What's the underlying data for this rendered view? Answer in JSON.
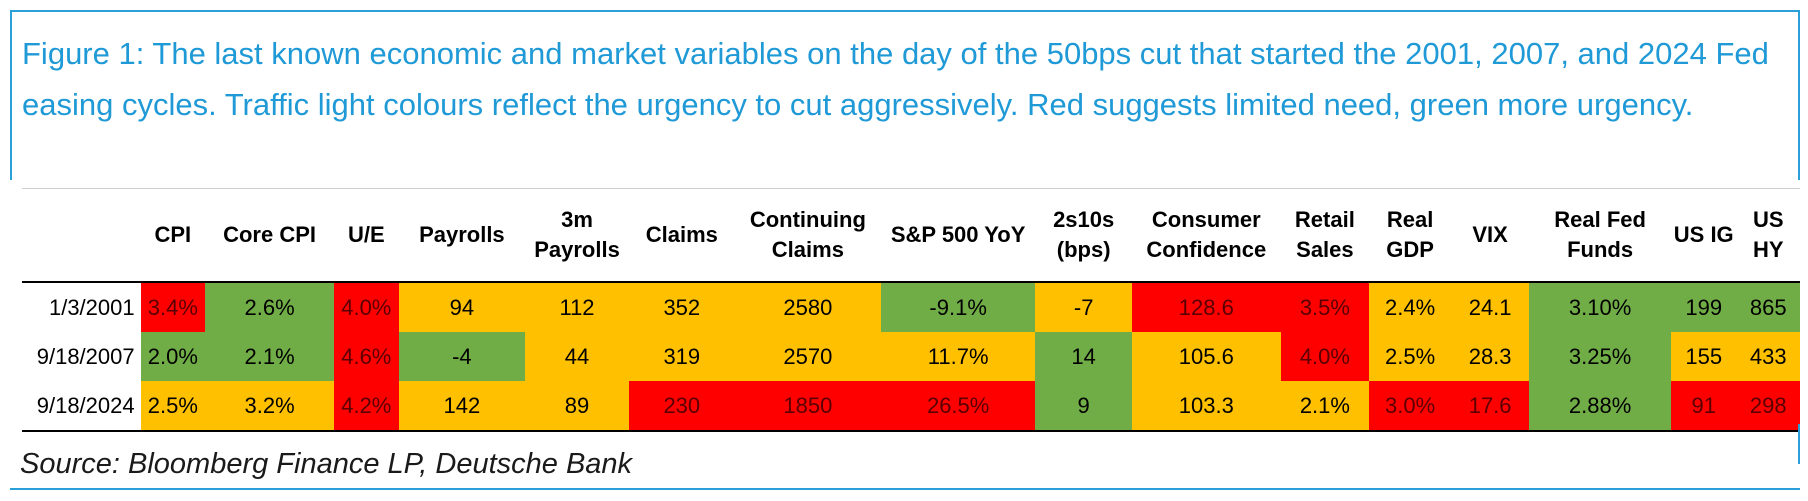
{
  "caption": "Figure 1: The last known economic and market variables on the day of the 50bps cut that started the 2001, 2007, and 2024 Fed easing cycles. Traffic light colours reflect the urgency to cut aggressively. Red suggests limited need, green more urgency.",
  "columns": [
    "",
    "CPI",
    "Core CPI",
    "U/E",
    "Payrolls",
    "3m Payrolls",
    "Claims",
    "Continuing Claims",
    "S&P 500 YoY",
    "2s10s (bps)",
    "Consumer Confidence",
    "Retail Sales",
    "Real GDP",
    "VIX",
    "Real Fed Funds",
    "US IG",
    "US HY"
  ],
  "rows": [
    {
      "date": "1/3/2001",
      "cells": [
        {
          "v": "3.4%",
          "c": "red"
        },
        {
          "v": "2.6%",
          "c": "green"
        },
        {
          "v": "4.0%",
          "c": "red"
        },
        {
          "v": "94",
          "c": "amber"
        },
        {
          "v": "112",
          "c": "amber"
        },
        {
          "v": "352",
          "c": "amber"
        },
        {
          "v": "2580",
          "c": "amber"
        },
        {
          "v": "-9.1%",
          "c": "green"
        },
        {
          "v": "-7",
          "c": "amber"
        },
        {
          "v": "128.6",
          "c": "red"
        },
        {
          "v": "3.5%",
          "c": "red"
        },
        {
          "v": "2.4%",
          "c": "amber"
        },
        {
          "v": "24.1",
          "c": "amber"
        },
        {
          "v": "3.10%",
          "c": "green"
        },
        {
          "v": "199",
          "c": "green"
        },
        {
          "v": "865",
          "c": "green"
        }
      ]
    },
    {
      "date": "9/18/2007",
      "cells": [
        {
          "v": "2.0%",
          "c": "green"
        },
        {
          "v": "2.1%",
          "c": "green"
        },
        {
          "v": "4.6%",
          "c": "red"
        },
        {
          "v": "-4",
          "c": "green"
        },
        {
          "v": "44",
          "c": "amber"
        },
        {
          "v": "319",
          "c": "amber"
        },
        {
          "v": "2570",
          "c": "amber"
        },
        {
          "v": "11.7%",
          "c": "amber"
        },
        {
          "v": "14",
          "c": "green"
        },
        {
          "v": "105.6",
          "c": "amber"
        },
        {
          "v": "4.0%",
          "c": "red"
        },
        {
          "v": "2.5%",
          "c": "amber"
        },
        {
          "v": "28.3",
          "c": "amber"
        },
        {
          "v": "3.25%",
          "c": "green"
        },
        {
          "v": "155",
          "c": "amber"
        },
        {
          "v": "433",
          "c": "amber"
        }
      ]
    },
    {
      "date": "9/18/2024",
      "cells": [
        {
          "v": "2.5%",
          "c": "amber"
        },
        {
          "v": "3.2%",
          "c": "amber"
        },
        {
          "v": "4.2%",
          "c": "red"
        },
        {
          "v": "142",
          "c": "amber"
        },
        {
          "v": "89",
          "c": "amber"
        },
        {
          "v": "230",
          "c": "red"
        },
        {
          "v": "1850",
          "c": "red"
        },
        {
          "v": "26.5%",
          "c": "red"
        },
        {
          "v": "9",
          "c": "green"
        },
        {
          "v": "103.3",
          "c": "amber"
        },
        {
          "v": "2.1%",
          "c": "amber"
        },
        {
          "v": "3.0%",
          "c": "red"
        },
        {
          "v": "17.6",
          "c": "red"
        },
        {
          "v": "2.88%",
          "c": "green"
        },
        {
          "v": "91",
          "c": "red"
        },
        {
          "v": "298",
          "c": "red"
        }
      ]
    }
  ],
  "colors": {
    "green": "#70ad47",
    "amber": "#ffc000",
    "red": "#ff0000",
    "caption": "#1f9ad6"
  },
  "source": "Source: Bloomberg Finance LP, Deutsche Bank"
}
